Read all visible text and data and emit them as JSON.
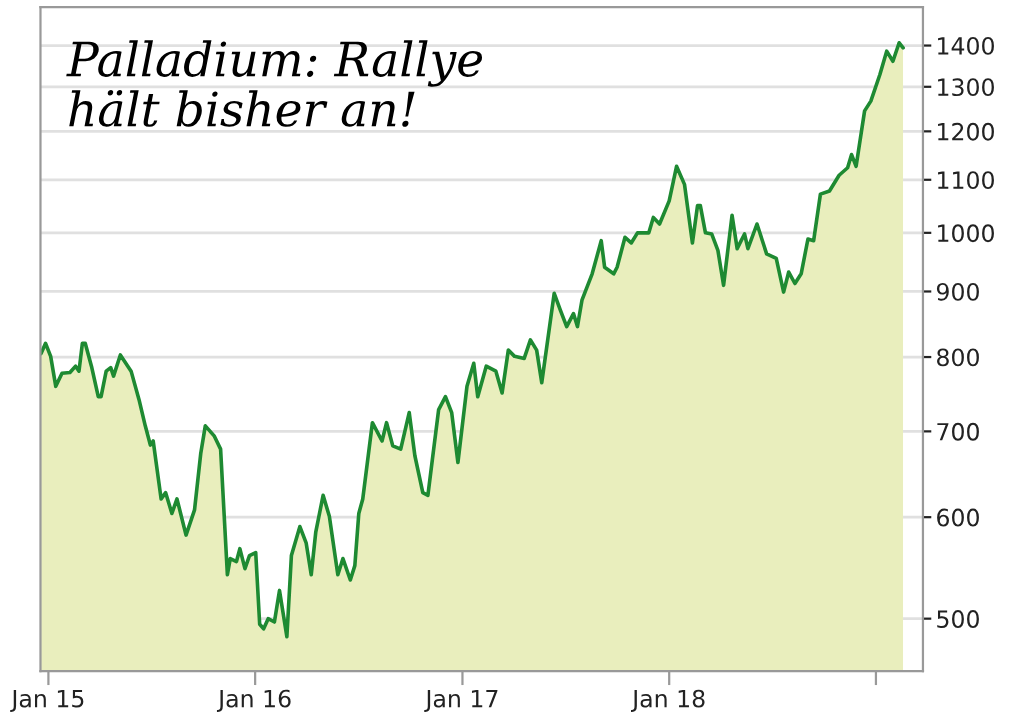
{
  "chart_data": {
    "type": "area",
    "title": "Palladium: Rallye\nhält bisher an!",
    "x": [
      "2014-12-19",
      "2014-12-27",
      "2015-01-05",
      "2015-01-14",
      "2015-01-25",
      "2015-02-08",
      "2015-02-18",
      "2015-02-24",
      "2015-03-02",
      "2015-03-07",
      "2015-03-18",
      "2015-03-30",
      "2015-04-04",
      "2015-04-13",
      "2015-04-21",
      "2015-04-26",
      "2015-05-08",
      "2015-05-27",
      "2015-06-10",
      "2015-06-21",
      "2015-06-30",
      "2015-07-05",
      "2015-07-19",
      "2015-07-27",
      "2015-08-07",
      "2015-08-16",
      "2015-09-01",
      "2015-09-16",
      "2015-09-27",
      "2015-10-05",
      "2015-10-21",
      "2015-11-01",
      "2015-11-13",
      "2015-11-18",
      "2015-11-29",
      "2015-12-05",
      "2015-12-14",
      "2015-12-22",
      "2016-01-02",
      "2016-01-09",
      "2016-01-16",
      "2016-01-24",
      "2016-02-04",
      "2016-02-13",
      "2016-02-26",
      "2016-03-05",
      "2016-03-20",
      "2016-03-31",
      "2016-04-09",
      "2016-04-17",
      "2016-04-30",
      "2016-05-11",
      "2016-05-26",
      "2016-06-04",
      "2016-06-17",
      "2016-06-25",
      "2016-07-02",
      "2016-07-09",
      "2016-07-26",
      "2016-08-12",
      "2016-08-20",
      "2016-08-31",
      "2016-09-14",
      "2016-09-29",
      "2016-10-09",
      "2016-10-23",
      "2016-11-01",
      "2016-11-09",
      "2016-11-20",
      "2016-12-02",
      "2016-12-13",
      "2016-12-24",
      "2017-01-09",
      "2017-01-21",
      "2017-01-28",
      "2017-02-12",
      "2017-03-01",
      "2017-03-12",
      "2017-03-23",
      "2017-04-03",
      "2017-04-20",
      "2017-05-01",
      "2017-05-12",
      "2017-05-21",
      "2017-06-12",
      "2017-06-23",
      "2017-07-04",
      "2017-07-16",
      "2017-07-23",
      "2017-07-31",
      "2017-08-18",
      "2017-09-03",
      "2017-09-09",
      "2017-09-25",
      "2017-10-01",
      "2017-10-15",
      "2017-10-26",
      "2017-11-06",
      "2017-11-26",
      "2017-12-04",
      "2017-12-15",
      "2018-01-01",
      "2018-01-14",
      "2018-01-28",
      "2018-02-11",
      "2018-02-20",
      "2018-02-25",
      "2018-03-06",
      "2018-03-17",
      "2018-03-28",
      "2018-04-07",
      "2018-04-22",
      "2018-05-01",
      "2018-05-14",
      "2018-05-20",
      "2018-06-05",
      "2018-06-22",
      "2018-07-09",
      "2018-07-22",
      "2018-07-31",
      "2018-08-11",
      "2018-08-22",
      "2018-09-03",
      "2018-09-13",
      "2018-09-25",
      "2018-10-11",
      "2018-10-28",
      "2018-11-12",
      "2018-11-19",
      "2018-11-27",
      "2018-12-12",
      "2018-12-23",
      "2019-01-08",
      "2019-01-20",
      "2019-01-31",
      "2019-02-11",
      "2019-02-18"
    ],
    "series": [
      {
        "color": "#1e8a32",
        "values": [
          805,
          820,
          801,
          759,
          777,
          778,
          787,
          780,
          820,
          820,
          787,
          745,
          745,
          780,
          785,
          773,
          803,
          780,
          741,
          707,
          683,
          688,
          620,
          627,
          604,
          620,
          581,
          608,
          673,
          707,
          694,
          678,
          541,
          557,
          554,
          567,
          547,
          560,
          563,
          495,
          491,
          500,
          497,
          526,
          484,
          560,
          590,
          573,
          541,
          584,
          624,
          601,
          541,
          557,
          536,
          550,
          604,
          620,
          711,
          688,
          711,
          682,
          678,
          724,
          670,
          627,
          624,
          666,
          728,
          745,
          724,
          662,
          759,
          791,
          745,
          787,
          780,
          750,
          810,
          801,
          798,
          825,
          810,
          764,
          897,
          870,
          845,
          865,
          845,
          886,
          929,
          986,
          940,
          929,
          940,
          992,
          982,
          1000,
          1000,
          1028,
          1016,
          1059,
          1127,
          1091,
          982,
          1050,
          1050,
          1000,
          998,
          969,
          910,
          1032,
          972,
          998,
          972,
          1016,
          963,
          955,
          899,
          932,
          913,
          929,
          989,
          986,
          1072,
          1078,
          1109,
          1124,
          1151,
          1127,
          1245,
          1267,
          1329,
          1386,
          1361,
          1407,
          1394
        ]
      }
    ],
    "log": "y",
    "xlim": [
      "2014-12-18",
      "2019-03-25"
    ],
    "ylim": [
      455,
      1500
    ],
    "xticks": [
      {
        "value": "2015-01-01",
        "label": "Jan 15"
      },
      {
        "value": "2016-01-01",
        "label": "Jan 16"
      },
      {
        "value": "2017-01-01",
        "label": "Jan 17"
      },
      {
        "value": "2018-01-01",
        "label": "Jan 18"
      },
      {
        "value": "2019-01-01",
        "label": null
      }
    ],
    "yticks": [
      500,
      600,
      700,
      800,
      900,
      1000,
      1100,
      1200,
      1300,
      1400
    ],
    "grid": "y"
  }
}
